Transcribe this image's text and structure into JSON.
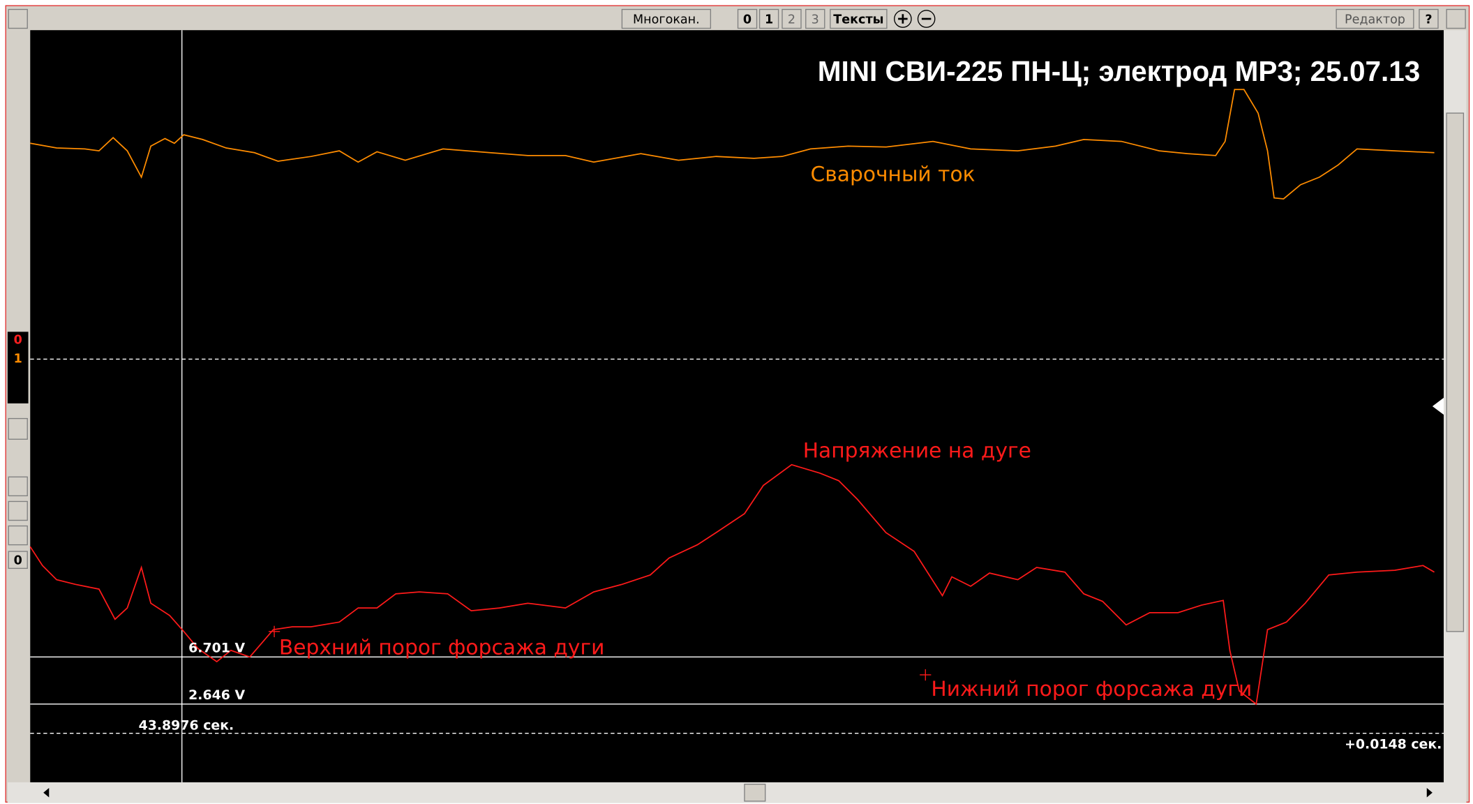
{
  "toolbar": {
    "multichannel": "Многокан.",
    "channels": [
      "0",
      "1",
      "2",
      "3"
    ],
    "texts": "Тексты",
    "editor": "Редактор",
    "help": "?"
  },
  "plot": {
    "title": "MINI СВИ-225 ПН-Ц; электрод МР3; 25.07.13",
    "channel_labels": [
      "Сварочный ток",
      "Напряжение на дуге"
    ],
    "thresholds": [
      {
        "label": "Верхний порог форсажа дуги",
        "value_text": "6.701 V"
      },
      {
        "label": "Нижний порог форсажа дуги",
        "value_text": "2.646 V"
      }
    ],
    "cursor_time": "43.8976 сек.",
    "time_delta": "+0.0148 сек."
  },
  "side_panel": {
    "channels": [
      "0",
      "1"
    ],
    "counter": "0"
  }
}
